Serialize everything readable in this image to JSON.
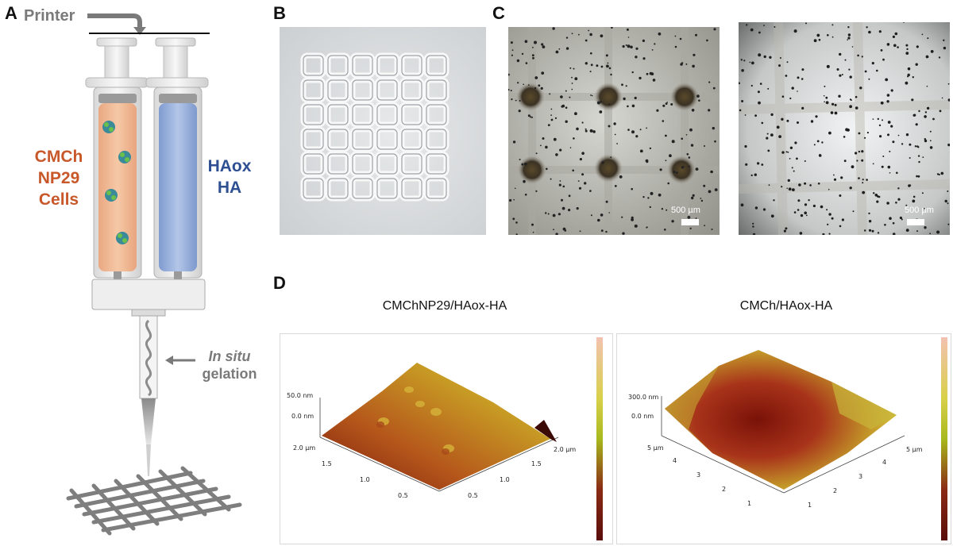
{
  "panel_a": {
    "letter": "A",
    "printer_label": "Printer",
    "left_syringe_lines": [
      "CMCh",
      "NP29",
      "Cells"
    ],
    "right_syringe_lines": [
      "HAox",
      "HA"
    ],
    "gelation_prefix": "In situ",
    "gelation_suffix": "gelation",
    "colors": {
      "left_text": "#c8582a",
      "right_text": "#2f4f93",
      "left_fill": "#f2bb94",
      "right_fill": "#9fb5de",
      "gray_text": "#7a7a7a"
    }
  },
  "panel_b": {
    "letter": "B"
  },
  "panel_c": {
    "letter": "C",
    "scale_left": "500 µm",
    "scale_right": "500 µm"
  },
  "panel_d": {
    "letter": "D",
    "left": {
      "title": "CMChNP29/HAox-HA",
      "z_ticks": [
        "50.0 nm",
        "0.0 nm"
      ],
      "y_ticks": [
        "2.0 µm",
        "1.5",
        "1.0",
        "0.5"
      ],
      "x_ticks": [
        "2.0 µm",
        "1.5",
        "1.0",
        "0.5"
      ]
    },
    "right": {
      "title": "CMCh/HAox-HA",
      "z_ticks": [
        "300.0 nm",
        "0.0 nm"
      ],
      "y_ticks": [
        "5 µm",
        "4",
        "3",
        "2",
        "1"
      ],
      "x_ticks": [
        "5 µm",
        "4",
        "3",
        "2",
        "1"
      ]
    },
    "colorbar_colors": [
      "#f2c2b0",
      "#d9d04a",
      "#a9b91e",
      "#8a2a14",
      "#5a0d0a"
    ]
  }
}
